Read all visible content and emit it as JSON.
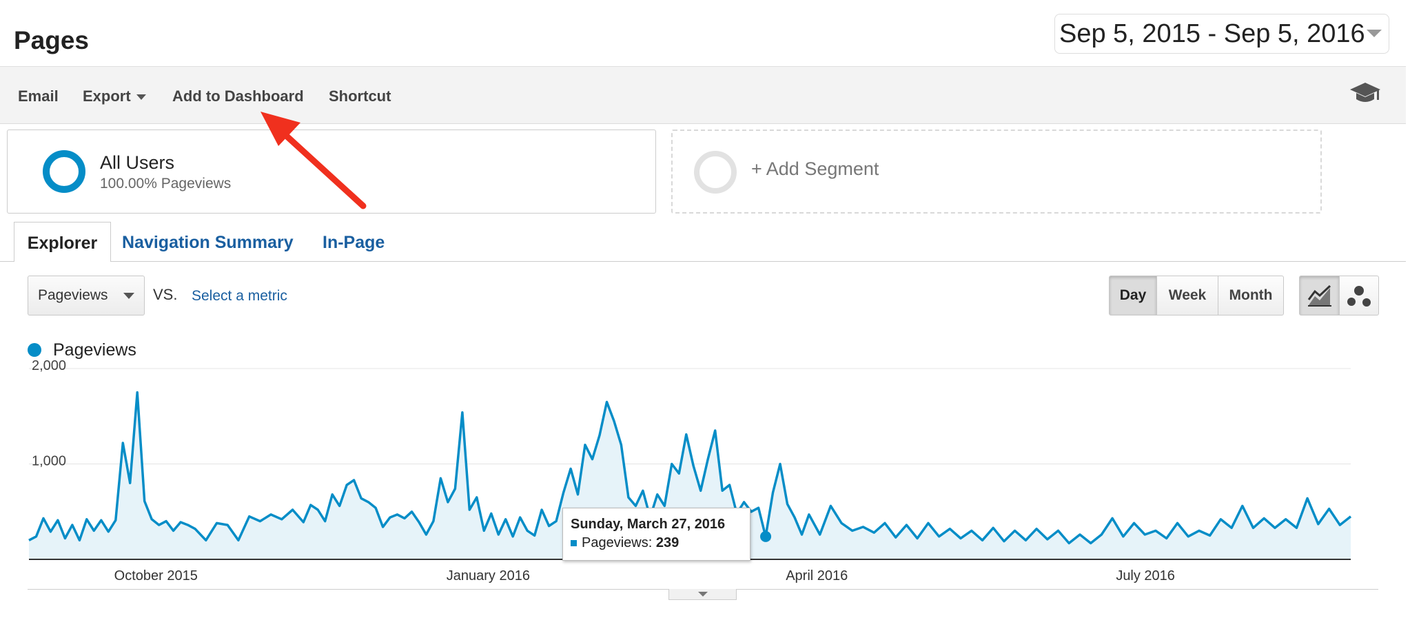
{
  "header": {
    "title": "Pages",
    "date_range": "Sep 5, 2015 - Sep 5, 2016"
  },
  "toolbar": {
    "email": "Email",
    "export": "Export",
    "add_to_dashboard": "Add to Dashboard",
    "shortcut": "Shortcut",
    "help_icon": "graduation-cap-icon"
  },
  "segments": {
    "all_users": {
      "name": "All Users",
      "detail": "100.00% Pageviews"
    },
    "add_segment": "+ Add Segment"
  },
  "tabs": [
    {
      "label": "Explorer",
      "active": true
    },
    {
      "label": "Navigation Summary",
      "active": false
    },
    {
      "label": "In-Page",
      "active": false
    }
  ],
  "controls": {
    "metric": "Pageviews",
    "vs": "VS.",
    "select_metric": "Select a metric",
    "granularity": [
      {
        "label": "Day",
        "active": true
      },
      {
        "label": "Week",
        "active": false
      },
      {
        "label": "Month",
        "active": false
      }
    ],
    "chart_type_icons": [
      "line-chart-icon",
      "bubble-chart-icon"
    ]
  },
  "tooltip": {
    "date": "Sunday, March 27, 2016",
    "metric": "Pageviews:",
    "value": "239"
  },
  "colors": {
    "series": "#058dc7",
    "fill": "#e6f3f9",
    "link": "#1a5fa0",
    "arrow": "#f0301e"
  },
  "chart_data": {
    "type": "area",
    "title": "",
    "legend": [
      "Pageviews"
    ],
    "x_range": [
      "2015-09-05",
      "2016-09-05"
    ],
    "x_tick_labels": [
      "October 2015",
      "January 2016",
      "April 2016",
      "July 2016"
    ],
    "y_tick_labels": [
      "2,000",
      "1,000"
    ],
    "ylim": [
      0,
      2000
    ],
    "grid": true,
    "series": [
      {
        "name": "Pageviews",
        "points": [
          [
            "2015-09-05",
            200
          ],
          [
            "2015-09-07",
            240
          ],
          [
            "2015-09-09",
            430
          ],
          [
            "2015-09-11",
            290
          ],
          [
            "2015-09-13",
            410
          ],
          [
            "2015-09-15",
            220
          ],
          [
            "2015-09-17",
            360
          ],
          [
            "2015-09-19",
            200
          ],
          [
            "2015-09-21",
            420
          ],
          [
            "2015-09-23",
            300
          ],
          [
            "2015-09-25",
            410
          ],
          [
            "2015-09-27",
            290
          ],
          [
            "2015-09-29",
            410
          ],
          [
            "2015-10-01",
            1220
          ],
          [
            "2015-10-03",
            800
          ],
          [
            "2015-10-05",
            1750
          ],
          [
            "2015-10-07",
            610
          ],
          [
            "2015-10-09",
            420
          ],
          [
            "2015-10-11",
            360
          ],
          [
            "2015-10-13",
            400
          ],
          [
            "2015-10-15",
            300
          ],
          [
            "2015-10-17",
            390
          ],
          [
            "2015-10-19",
            360
          ],
          [
            "2015-10-21",
            320
          ],
          [
            "2015-10-24",
            200
          ],
          [
            "2015-10-27",
            380
          ],
          [
            "2015-10-30",
            360
          ],
          [
            "2015-11-02",
            200
          ],
          [
            "2015-11-05",
            450
          ],
          [
            "2015-11-08",
            400
          ],
          [
            "2015-11-11",
            470
          ],
          [
            "2015-11-14",
            420
          ],
          [
            "2015-11-17",
            520
          ],
          [
            "2015-11-20",
            390
          ],
          [
            "2015-11-22",
            570
          ],
          [
            "2015-11-24",
            520
          ],
          [
            "2015-11-26",
            400
          ],
          [
            "2015-11-28",
            680
          ],
          [
            "2015-11-30",
            560
          ],
          [
            "2015-12-02",
            780
          ],
          [
            "2015-12-04",
            830
          ],
          [
            "2015-12-06",
            640
          ],
          [
            "2015-12-08",
            600
          ],
          [
            "2015-12-10",
            540
          ],
          [
            "2015-12-12",
            340
          ],
          [
            "2015-12-14",
            440
          ],
          [
            "2015-12-16",
            470
          ],
          [
            "2015-12-18",
            430
          ],
          [
            "2015-12-20",
            500
          ],
          [
            "2015-12-22",
            390
          ],
          [
            "2015-12-24",
            260
          ],
          [
            "2015-12-26",
            400
          ],
          [
            "2015-12-28",
            850
          ],
          [
            "2015-12-30",
            600
          ],
          [
            "2016-01-01",
            740
          ],
          [
            "2016-01-03",
            1540
          ],
          [
            "2016-01-05",
            520
          ],
          [
            "2016-01-07",
            650
          ],
          [
            "2016-01-09",
            300
          ],
          [
            "2016-01-11",
            480
          ],
          [
            "2016-01-13",
            260
          ],
          [
            "2016-01-15",
            420
          ],
          [
            "2016-01-17",
            240
          ],
          [
            "2016-01-19",
            440
          ],
          [
            "2016-01-21",
            300
          ],
          [
            "2016-01-23",
            250
          ],
          [
            "2016-01-25",
            520
          ],
          [
            "2016-01-27",
            350
          ],
          [
            "2016-01-29",
            400
          ],
          [
            "2016-01-31",
            700
          ],
          [
            "2016-02-02",
            950
          ],
          [
            "2016-02-04",
            680
          ],
          [
            "2016-02-06",
            1200
          ],
          [
            "2016-02-08",
            1050
          ],
          [
            "2016-02-10",
            1300
          ],
          [
            "2016-02-12",
            1650
          ],
          [
            "2016-02-14",
            1450
          ],
          [
            "2016-02-16",
            1200
          ],
          [
            "2016-02-18",
            650
          ],
          [
            "2016-02-20",
            560
          ],
          [
            "2016-02-22",
            720
          ],
          [
            "2016-02-24",
            440
          ],
          [
            "2016-02-26",
            680
          ],
          [
            "2016-02-28",
            560
          ],
          [
            "2016-03-01",
            1000
          ],
          [
            "2016-03-03",
            900
          ],
          [
            "2016-03-05",
            1310
          ],
          [
            "2016-03-07",
            980
          ],
          [
            "2016-03-09",
            720
          ],
          [
            "2016-03-11",
            1050
          ],
          [
            "2016-03-13",
            1350
          ],
          [
            "2016-03-15",
            720
          ],
          [
            "2016-03-17",
            780
          ],
          [
            "2016-03-19",
            480
          ],
          [
            "2016-03-21",
            600
          ],
          [
            "2016-03-23",
            500
          ],
          [
            "2016-03-25",
            540
          ],
          [
            "2016-03-27",
            239
          ],
          [
            "2016-03-29",
            700
          ],
          [
            "2016-03-31",
            1000
          ],
          [
            "2016-04-02",
            580
          ],
          [
            "2016-04-04",
            440
          ],
          [
            "2016-04-06",
            260
          ],
          [
            "2016-04-08",
            470
          ],
          [
            "2016-04-11",
            260
          ],
          [
            "2016-04-14",
            560
          ],
          [
            "2016-04-17",
            380
          ],
          [
            "2016-04-20",
            300
          ],
          [
            "2016-04-23",
            340
          ],
          [
            "2016-04-26",
            280
          ],
          [
            "2016-04-29",
            380
          ],
          [
            "2016-05-02",
            230
          ],
          [
            "2016-05-05",
            360
          ],
          [
            "2016-05-08",
            220
          ],
          [
            "2016-05-11",
            380
          ],
          [
            "2016-05-14",
            240
          ],
          [
            "2016-05-17",
            320
          ],
          [
            "2016-05-20",
            220
          ],
          [
            "2016-05-23",
            300
          ],
          [
            "2016-05-26",
            200
          ],
          [
            "2016-05-29",
            330
          ],
          [
            "2016-06-01",
            190
          ],
          [
            "2016-06-04",
            300
          ],
          [
            "2016-06-07",
            200
          ],
          [
            "2016-06-10",
            320
          ],
          [
            "2016-06-13",
            210
          ],
          [
            "2016-06-16",
            300
          ],
          [
            "2016-06-19",
            170
          ],
          [
            "2016-06-22",
            260
          ],
          [
            "2016-06-25",
            170
          ],
          [
            "2016-06-28",
            260
          ],
          [
            "2016-07-01",
            430
          ],
          [
            "2016-07-04",
            240
          ],
          [
            "2016-07-07",
            380
          ],
          [
            "2016-07-10",
            260
          ],
          [
            "2016-07-13",
            300
          ],
          [
            "2016-07-16",
            220
          ],
          [
            "2016-07-19",
            380
          ],
          [
            "2016-07-22",
            240
          ],
          [
            "2016-07-25",
            300
          ],
          [
            "2016-07-28",
            250
          ],
          [
            "2016-07-31",
            420
          ],
          [
            "2016-08-03",
            330
          ],
          [
            "2016-08-06",
            560
          ],
          [
            "2016-08-09",
            330
          ],
          [
            "2016-08-12",
            430
          ],
          [
            "2016-08-15",
            330
          ],
          [
            "2016-08-18",
            420
          ],
          [
            "2016-08-21",
            330
          ],
          [
            "2016-08-24",
            640
          ],
          [
            "2016-08-27",
            370
          ],
          [
            "2016-08-30",
            530
          ],
          [
            "2016-09-02",
            360
          ],
          [
            "2016-09-05",
            450
          ]
        ]
      }
    ]
  }
}
